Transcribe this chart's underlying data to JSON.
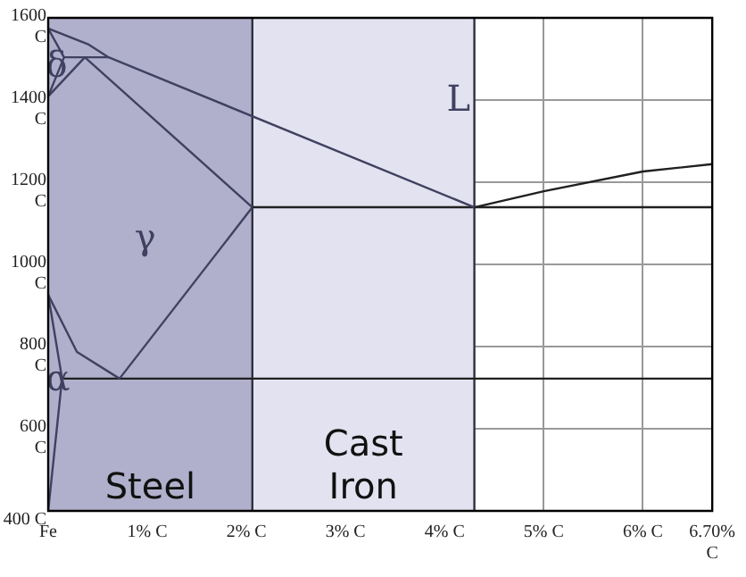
{
  "chart_data": {
    "type": "line",
    "xlim": [
      0,
      6.7
    ],
    "ylim": [
      400,
      1600
    ],
    "xticks": [
      {
        "value": 0,
        "label": "Fe"
      },
      {
        "value": 1,
        "label": "1% C"
      },
      {
        "value": 2,
        "label": "2% C"
      },
      {
        "value": 3,
        "label": "3% C"
      },
      {
        "value": 4,
        "label": "4% C"
      },
      {
        "value": 5,
        "label": "5% C"
      },
      {
        "value": 6,
        "label": "6% C"
      },
      {
        "value": 6.7,
        "label": "6.70% C"
      }
    ],
    "yticks": [
      {
        "value": 400,
        "label": "400 C"
      },
      {
        "value": 600,
        "label": "600 C"
      },
      {
        "value": 800,
        "label": "800 C"
      },
      {
        "value": 1000,
        "label": "1000 C"
      },
      {
        "value": 1200,
        "label": "1200 C"
      },
      {
        "value": 1400,
        "label": "1400 C"
      },
      {
        "value": 1600,
        "label": "1600 C"
      }
    ],
    "grid": true,
    "legend": false,
    "marker": "none",
    "line_style": "solid",
    "series": [
      {
        "color": "#404060",
        "x": [
          0,
          0.41,
          0.61,
          4.3
        ],
        "values": [
          1574,
          1535,
          1504,
          1139
        ]
      },
      {
        "color": "#202020",
        "x": [
          4.3,
          5,
          6,
          6.7
        ],
        "values": [
          1139,
          1178,
          1226,
          1244
        ]
      },
      {
        "color": "#404060",
        "x": [
          0,
          0.16,
          0
        ],
        "values": [
          1574,
          1504,
          1409
        ]
      },
      {
        "color": "#404060",
        "x": [
          0.16,
          0.61
        ],
        "values": [
          1504,
          1504
        ]
      },
      {
        "color": "#404060",
        "x": [
          0,
          0.37,
          2.06
        ],
        "values": [
          1409,
          1504,
          1139
        ]
      },
      {
        "color": "#202020",
        "x": [
          2.06,
          6.7
        ],
        "values": [
          1139,
          1139
        ]
      },
      {
        "color": "#404060",
        "x": [
          2.06,
          0.72
        ],
        "values": [
          1139,
          722
        ]
      },
      {
        "color": "#404060",
        "x": [
          0,
          0.29,
          0.72
        ],
        "values": [
          926,
          787,
          722
        ]
      },
      {
        "color": "#202020",
        "x": [
          0.14,
          6.7
        ],
        "values": [
          722,
          722
        ]
      },
      {
        "color": "#404060",
        "x": [
          0,
          0.14,
          0
        ],
        "values": [
          926,
          722,
          400
        ]
      }
    ],
    "bands": [
      {
        "axis": "x",
        "from": 0,
        "to": 2.06,
        "label": "Steel",
        "color": "#b0b0cc"
      },
      {
        "axis": "x",
        "from": 2.06,
        "to": 4.3,
        "label": "Cast Iron",
        "color": "#e2e2f0"
      }
    ],
    "ref_lines": [
      {
        "axis": "x",
        "value": 2.06,
        "color": "#303040"
      },
      {
        "axis": "x",
        "value": 4.3,
        "color": "#303040"
      }
    ],
    "annotations": [
      {
        "text": "δ",
        "x": 0.05,
        "y": 1480
      },
      "L",
      "γ",
      {
        "text": "α",
        "x": 0.05,
        "y": 717
      }
    ]
  }
}
